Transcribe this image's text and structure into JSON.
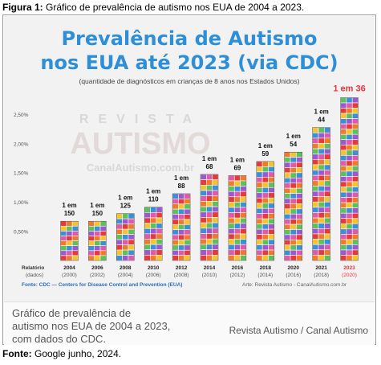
{
  "figure": {
    "label": "Figura 1:",
    "caption": "Gráfico de prevalência de autismo nos EUA de 2004 a 2023."
  },
  "source": {
    "label": "Fonte:",
    "text": "Google junho, 2024."
  },
  "watermark": {
    "line1": "REVISTA",
    "line2": "AUTISMO",
    "line3": "CanalAutismo.com.br"
  },
  "footer": {
    "cdc_source": "Fonte: CDC — Centers for Disease Control and Prevention (EUA)",
    "revista_source": "Arte: Revista Autismo - CanalAutismo.com.br"
  },
  "caption_box": {
    "line1": "Gráfico de prevalência de",
    "line2": "autismo nos EUA de 2004 a 2023,",
    "line3": "com dados do CDC.",
    "right": "Revista Autismo / Canal Autismo"
  },
  "chart_data": {
    "type": "bar",
    "title": "Prevalência de Autismo",
    "title_line2": "nos EUA até 2023 (via CDC)",
    "subtitle": "(quantidade de diagnósticos em crianças de 8 anos nos Estados Unidos)",
    "row_label_top": "Relatório",
    "row_label_bottom": "(dados)",
    "categories": [
      "2004",
      "2006",
      "2008",
      "2010",
      "2012",
      "2014",
      "2016",
      "2018",
      "2020",
      "2021",
      "2023"
    ],
    "data_years": [
      "(2000)",
      "(2002)",
      "(2004)",
      "(2006)",
      "(2008)",
      "(2010)",
      "(2012)",
      "(2014)",
      "(2016)",
      "(2018)",
      "(2020)"
    ],
    "value_labels": [
      "1 em 150",
      "1 em 150",
      "1 em 125",
      "1 em 110",
      "1 em 88",
      "1 em 68",
      "1 em 69",
      "1 em 59",
      "1 em 54",
      "1 em 44",
      "1 em 36"
    ],
    "values": [
      0.67,
      0.67,
      0.8,
      0.91,
      1.14,
      1.47,
      1.45,
      1.69,
      1.85,
      2.27,
      2.78
    ],
    "y_ticks": [
      "0,50%",
      "1,00%",
      "1,50%",
      "2,00%",
      "2,50%"
    ],
    "ylim": [
      0,
      2.8
    ],
    "grid": false,
    "colors": [
      "#e63a3a",
      "#f07a2a",
      "#f4c430",
      "#5cc15c",
      "#3a8fd8",
      "#9b59d0",
      "#e05aa8"
    ],
    "highlight_color": "#e8343f"
  }
}
